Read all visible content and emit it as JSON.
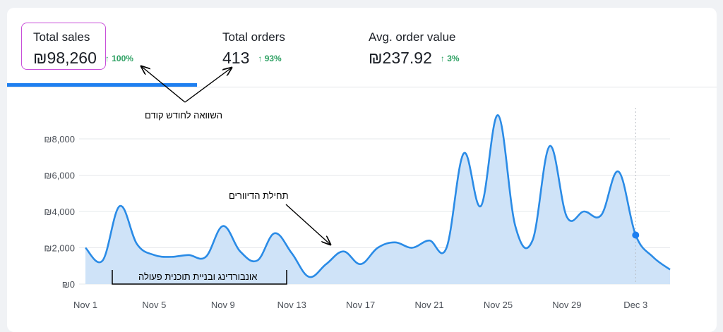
{
  "metrics": [
    {
      "label": "Total sales",
      "value": "₪98,260",
      "delta": "↑ 100%"
    },
    {
      "label": "Total orders",
      "value": "413",
      "delta": "↑ 93%"
    },
    {
      "label": "Avg. order value",
      "value": "₪237.92",
      "delta": "↑ 3%"
    }
  ],
  "annotations": {
    "comparison": "השוואה לחודש קודם",
    "residents_start": "תחילת הדיוורים",
    "onboarding": "אונבורדינג ובניית תוכנית פעולה"
  },
  "colors": {
    "line": "#2a8be6",
    "fill": "#cfe3f8",
    "accent": "#1e7ff0",
    "positive": "#2ea163",
    "highlight": "#c84fd9"
  },
  "chart_data": {
    "type": "area",
    "x_tick_labels": [
      "Nov 1",
      "Nov 5",
      "Nov 9",
      "Nov 13",
      "Nov 17",
      "Nov 21",
      "Nov 25",
      "Nov 29",
      "Dec 3"
    ],
    "y_tick_labels": [
      "₪0",
      "₪2,000",
      "₪4,000",
      "₪6,000",
      "₪8,000"
    ],
    "ylim": [
      0,
      9000
    ],
    "grid": true,
    "x": [
      "Nov 1",
      "Nov 2",
      "Nov 3",
      "Nov 4",
      "Nov 5",
      "Nov 6",
      "Nov 7",
      "Nov 8",
      "Nov 9",
      "Nov 10",
      "Nov 11",
      "Nov 12",
      "Nov 13",
      "Nov 14",
      "Nov 15",
      "Nov 16",
      "Nov 17",
      "Nov 18",
      "Nov 19",
      "Nov 20",
      "Nov 21",
      "Nov 22",
      "Nov 23",
      "Nov 24",
      "Nov 25",
      "Nov 26",
      "Nov 27",
      "Nov 28",
      "Nov 29",
      "Nov 30",
      "Dec 1",
      "Dec 2",
      "Dec 3",
      "Dec 4",
      "Dec 5"
    ],
    "series": [
      {
        "values": [
          2000,
          1300,
          4300,
          2200,
          1600,
          1500,
          1600,
          1500,
          3200,
          1800,
          1300,
          2800,
          1700,
          400,
          1100,
          1800,
          1100,
          2000,
          2300,
          2000,
          2400,
          2000,
          7200,
          4300,
          9300,
          3200,
          2400,
          7600,
          3700,
          4000,
          3800,
          6200,
          2700,
          1500,
          800
        ]
      }
    ],
    "highlighted_point": "Dec 3"
  }
}
